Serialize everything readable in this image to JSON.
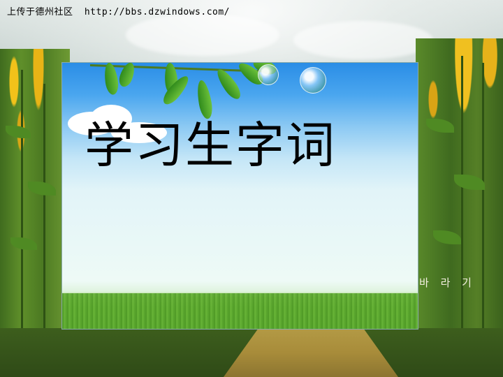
{
  "watermark": {
    "site_name": "上传于德州社区",
    "url": "http://bbs.dzwindows.com/"
  },
  "slide": {
    "title": "学习生字词"
  },
  "side_caption": "바 라 기",
  "colors": {
    "sky_top": "#2a8de6",
    "sky_bottom": "#e9f8f7",
    "grass": "#5aa12e",
    "sunflower": "#f0c020",
    "title_text": "#000000"
  }
}
